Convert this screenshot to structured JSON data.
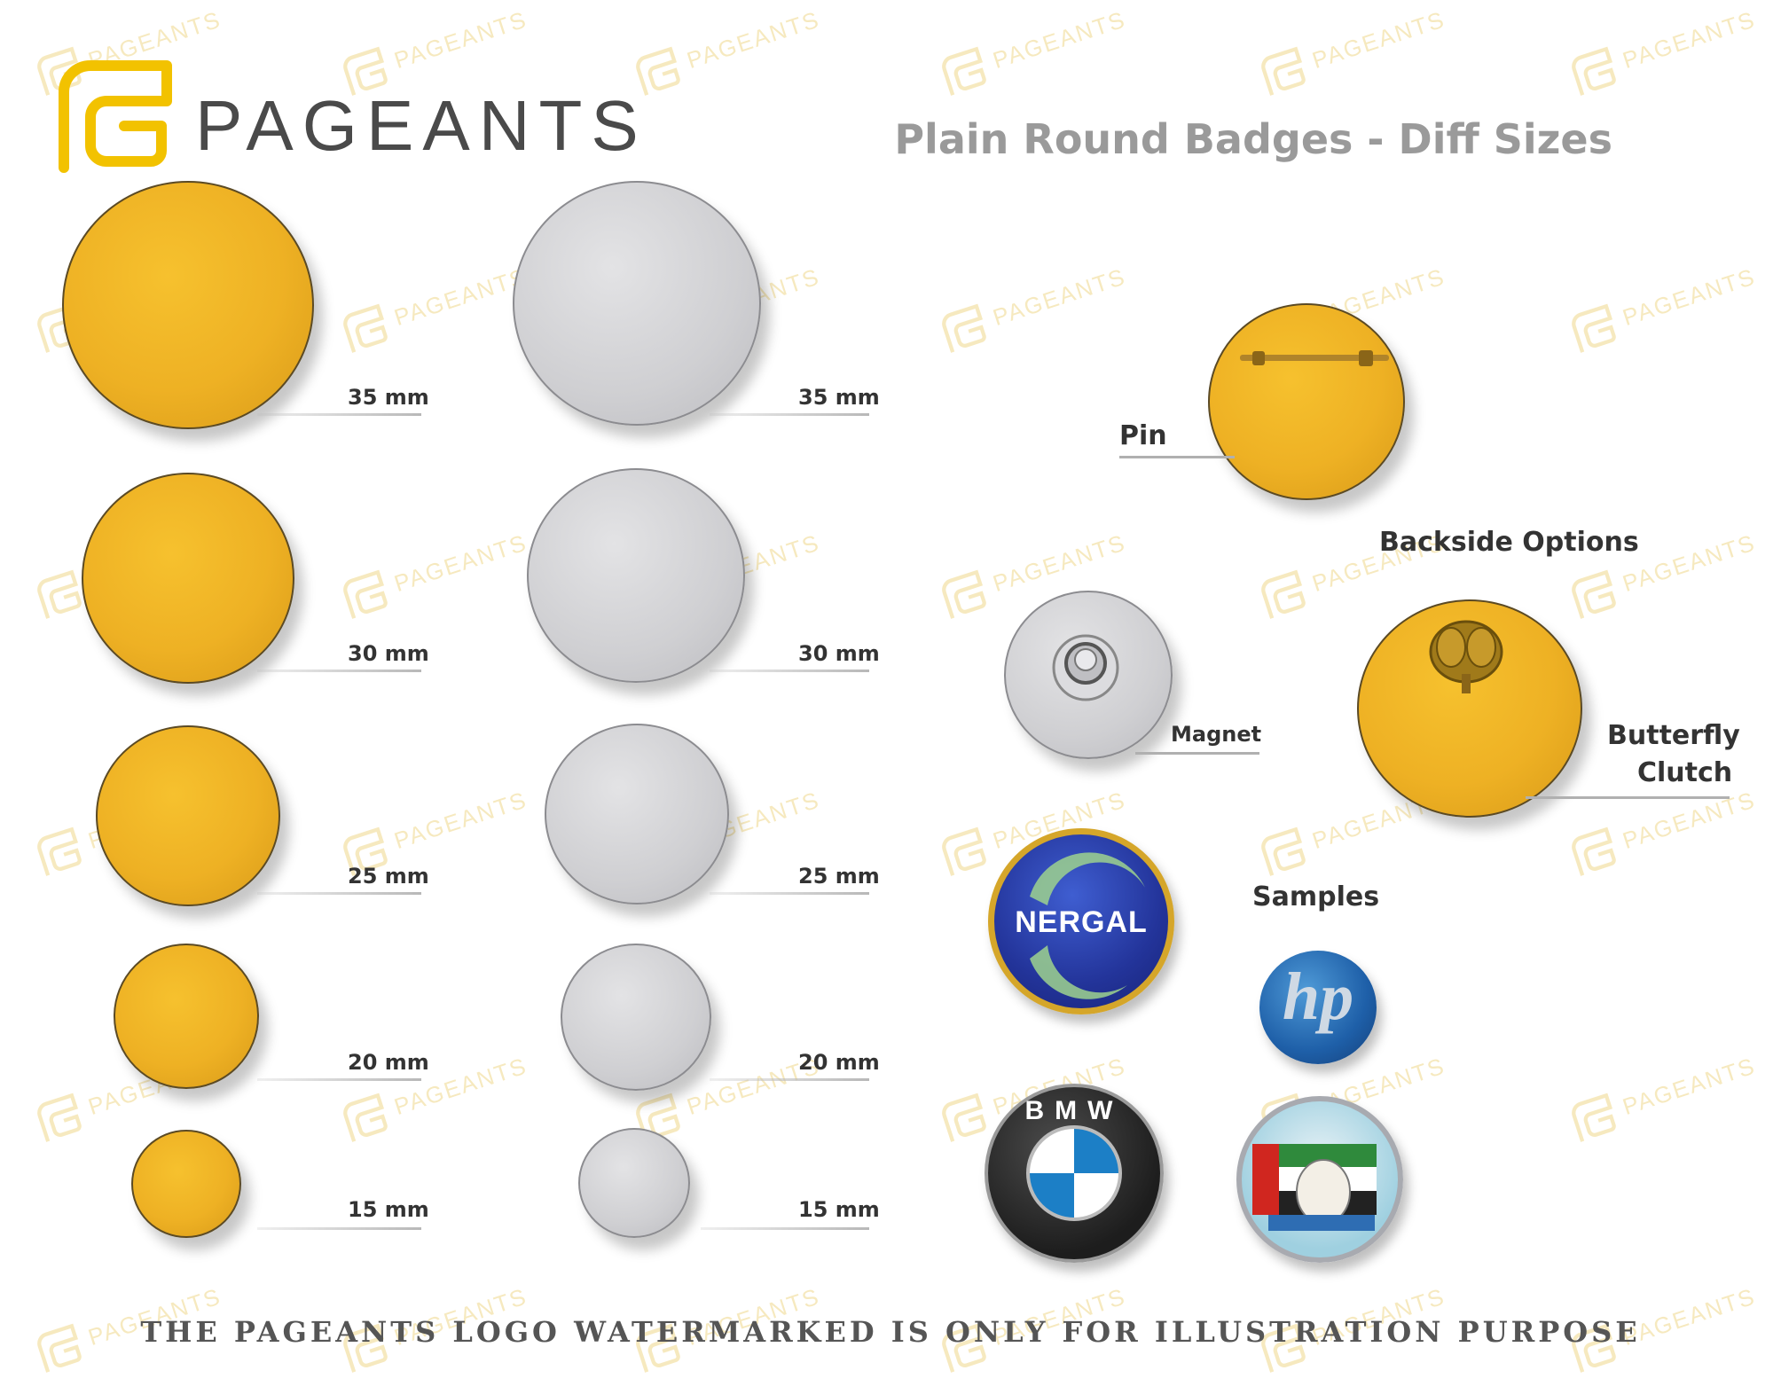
{
  "brand": {
    "name": "PAGEANTS"
  },
  "title": "Plain Round Badges - Diff Sizes",
  "sizes": {
    "gold": [
      "35 mm",
      "30 mm",
      "25 mm",
      "20 mm",
      "15 mm"
    ],
    "silver": [
      "35 mm",
      "30 mm",
      "25 mm",
      "20 mm",
      "15 mm"
    ]
  },
  "backside": {
    "heading": "Backside Options",
    "pin": "Pin",
    "magnet": "Magnet",
    "butterfly_line1": "Butterfly",
    "butterfly_line2": "Clutch"
  },
  "samples": {
    "heading": "Samples",
    "nergal": "NERGAL",
    "hp": "hp",
    "bmw": "BMW"
  },
  "watermark": "PAGEANTS",
  "footer": "THE PAGEANTS LOGO WATERMARKED IS ONLY FOR ILLUSTRATION PURPOSE",
  "colors": {
    "gold": "#eeb124",
    "silver": "#cfcfd2",
    "brand_yellow": "#f2c200",
    "title_gray": "#9a9a9a"
  }
}
